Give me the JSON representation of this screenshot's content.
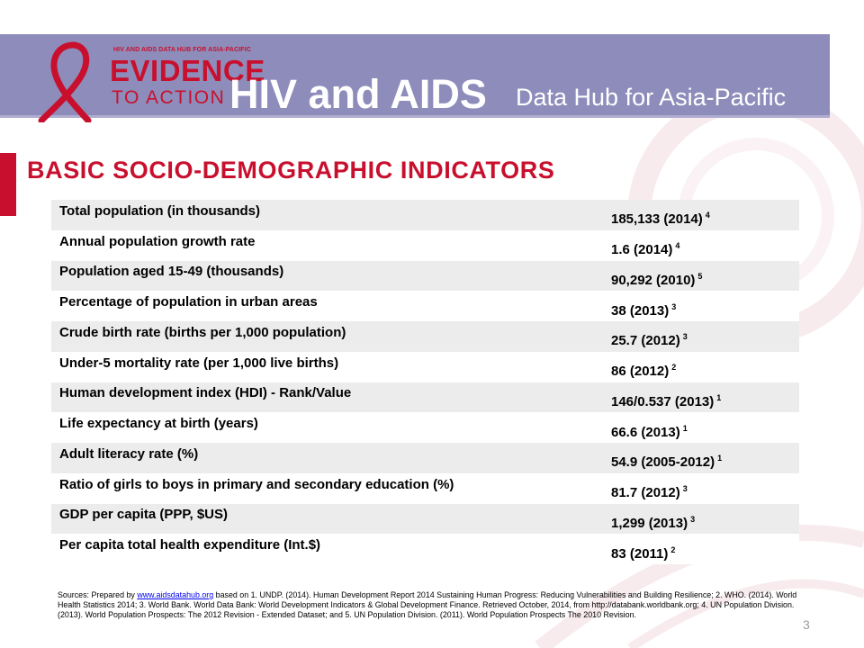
{
  "header": {
    "logo_small_text": "HIV AND AIDS DATA HUB FOR ASIA-PACIFIC",
    "logo_line1": "EVIDENCE",
    "logo_line2": "TO ACTION",
    "title": "HIV and AIDS",
    "subtitle": "Data Hub for Asia-Pacific"
  },
  "section_title": "BASIC SOCIO-DEMOGRAPHIC INDICATORS",
  "indicators": [
    {
      "label": "Total population (in thousands)",
      "value": "185,133 (2014)",
      "ref": "4"
    },
    {
      "label": "Annual population growth rate",
      "value": "1.6 (2014)",
      "ref": "4"
    },
    {
      "label": "Population aged 15-49 (thousands)",
      "value": "90,292 (2010)",
      "ref": "5"
    },
    {
      "label": "Percentage of population in urban areas",
      "value": "38 (2013)",
      "ref": "3"
    },
    {
      "label": "Crude birth rate (births per 1,000 population)",
      "value": "25.7 (2012)",
      "ref": "3"
    },
    {
      "label": "Under-5 mortality rate (per 1,000 live births)",
      "value": "86 (2012)",
      "ref": "2"
    },
    {
      "label": "Human development index (HDI) - Rank/Value",
      "value": "146/0.537 (2013)",
      "ref": "1"
    },
    {
      "label": "Life expectancy at birth (years)",
      "value": "66.6 (2013)",
      "ref": "1"
    },
    {
      "label": "Adult literacy rate (%)",
      "value": "54.9 (2005-2012)",
      "ref": "1"
    },
    {
      "label": "Ratio of girls to boys in primary and secondary education (%)",
      "value": "81.7 (2012)",
      "ref": "3"
    },
    {
      "label": "GDP per capita (PPP, $US)",
      "value": "1,299 (2013)",
      "ref": "3"
    },
    {
      "label": "Per capita total health expenditure (Int.$)",
      "value": "83 (2011)",
      "ref": "2"
    }
  ],
  "sources": {
    "prefix": "Sources: Prepared by ",
    "link_text": "www.aidsdatahub.org",
    "suffix": " based on 1. UNDP. (2014). Human Development Report 2014 Sustaining Human Progress: Reducing Vulnerabilities and Building Resilience; 2. WHO. (2014). World Health Statistics 2014; 3. World Bank. World Data Bank: World Development Indicators & Global Development Finance. Retrieved October, 2014, from http://databank.worldbank.org;  4. UN Population Division. (2013). World Population Prospects: The 2012 Revision - Extended Dataset; and 5. UN Population Division. (2011). World Population Prospects The 2010 Revision."
  },
  "page_number": "3",
  "colors": {
    "header_band": "#8e8cba",
    "accent_red": "#c8102e",
    "row_shade": "#ececec"
  }
}
